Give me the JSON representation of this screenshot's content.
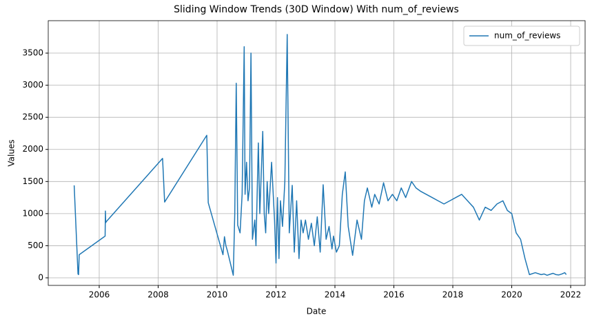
{
  "chart_data": {
    "type": "line",
    "title": "Sliding Window Trends (30D Window) With num_of_reviews",
    "x_label": "Date",
    "y_label": "Values",
    "x": [
      2005.15,
      2005.28,
      2005.3,
      2005.32,
      2006.2,
      2006.21,
      2006.22,
      2006.25,
      2008.15,
      2008.22,
      2009.65,
      2009.7,
      2010.2,
      2010.25,
      2010.3,
      2010.35,
      2010.55,
      2010.6,
      2010.65,
      2010.7,
      2010.78,
      2010.85,
      2010.92,
      2010.95,
      2011.0,
      2011.05,
      2011.1,
      2011.15,
      2011.2,
      2011.28,
      2011.32,
      2011.4,
      2011.45,
      2011.55,
      2011.6,
      2011.65,
      2011.7,
      2011.75,
      2011.85,
      2011.95,
      2012.0,
      2012.05,
      2012.1,
      2012.15,
      2012.22,
      2012.3,
      2012.38,
      2012.45,
      2012.55,
      2012.62,
      2012.7,
      2012.78,
      2012.85,
      2012.92,
      2013.0,
      2013.1,
      2013.2,
      2013.3,
      2013.4,
      2013.5,
      2013.6,
      2013.7,
      2013.8,
      2013.9,
      2013.95,
      2014.05,
      2014.15,
      2014.25,
      2014.35,
      2014.45,
      2014.6,
      2014.75,
      2014.9,
      2015.0,
      2015.1,
      2015.25,
      2015.35,
      2015.5,
      2015.65,
      2015.8,
      2015.95,
      2016.1,
      2016.25,
      2016.4,
      2016.6,
      2016.75,
      2016.9,
      2017.1,
      2017.3,
      2017.5,
      2017.7,
      2017.9,
      2018.1,
      2018.3,
      2018.5,
      2018.7,
      2018.9,
      2019.1,
      2019.3,
      2019.5,
      2019.7,
      2019.85,
      2020.0,
      2020.15,
      2020.3,
      2020.45,
      2020.6,
      2020.8,
      2021.0,
      2021.1,
      2021.2,
      2021.3,
      2021.4,
      2021.5,
      2021.6,
      2021.7,
      2021.8,
      2021.85
    ],
    "series": [
      {
        "name": "num_of_reviews",
        "color": "#1f77b4",
        "values": [
          1440,
          60,
          50,
          360,
          650,
          1040,
          860,
          880,
          1860,
          1180,
          2220,
          1170,
          360,
          640,
          500,
          420,
          40,
          1000,
          3030,
          820,
          700,
          1300,
          3600,
          1300,
          1800,
          1200,
          1400,
          3500,
          600,
          900,
          500,
          2100,
          1000,
          2280,
          1000,
          700,
          1500,
          1000,
          1800,
          900,
          230,
          1250,
          300,
          1200,
          800,
          1500,
          3790,
          700,
          1440,
          400,
          1200,
          300,
          900,
          700,
          900,
          600,
          850,
          500,
          950,
          400,
          1450,
          600,
          800,
          450,
          650,
          400,
          500,
          1300,
          1650,
          800,
          350,
          900,
          600,
          1200,
          1400,
          1100,
          1300,
          1150,
          1480,
          1200,
          1300,
          1200,
          1400,
          1250,
          1500,
          1400,
          1350,
          1300,
          1250,
          1200,
          1150,
          1200,
          1250,
          1300,
          1200,
          1100,
          900,
          1100,
          1050,
          1150,
          1200,
          1050,
          1000,
          700,
          600,
          300,
          50,
          80,
          50,
          60,
          40,
          55,
          70,
          50,
          45,
          60,
          80,
          50
        ]
      }
    ],
    "xlim": [
      2004.27,
      2022.49
    ],
    "ylim": [
      -118,
      4005
    ],
    "xticks": [
      2006,
      2008,
      2010,
      2012,
      2014,
      2016,
      2018,
      2020,
      2022
    ],
    "yticks": [
      0,
      500,
      1000,
      1500,
      2000,
      2500,
      3000,
      3500
    ],
    "grid": true,
    "legend": "upper-right"
  }
}
